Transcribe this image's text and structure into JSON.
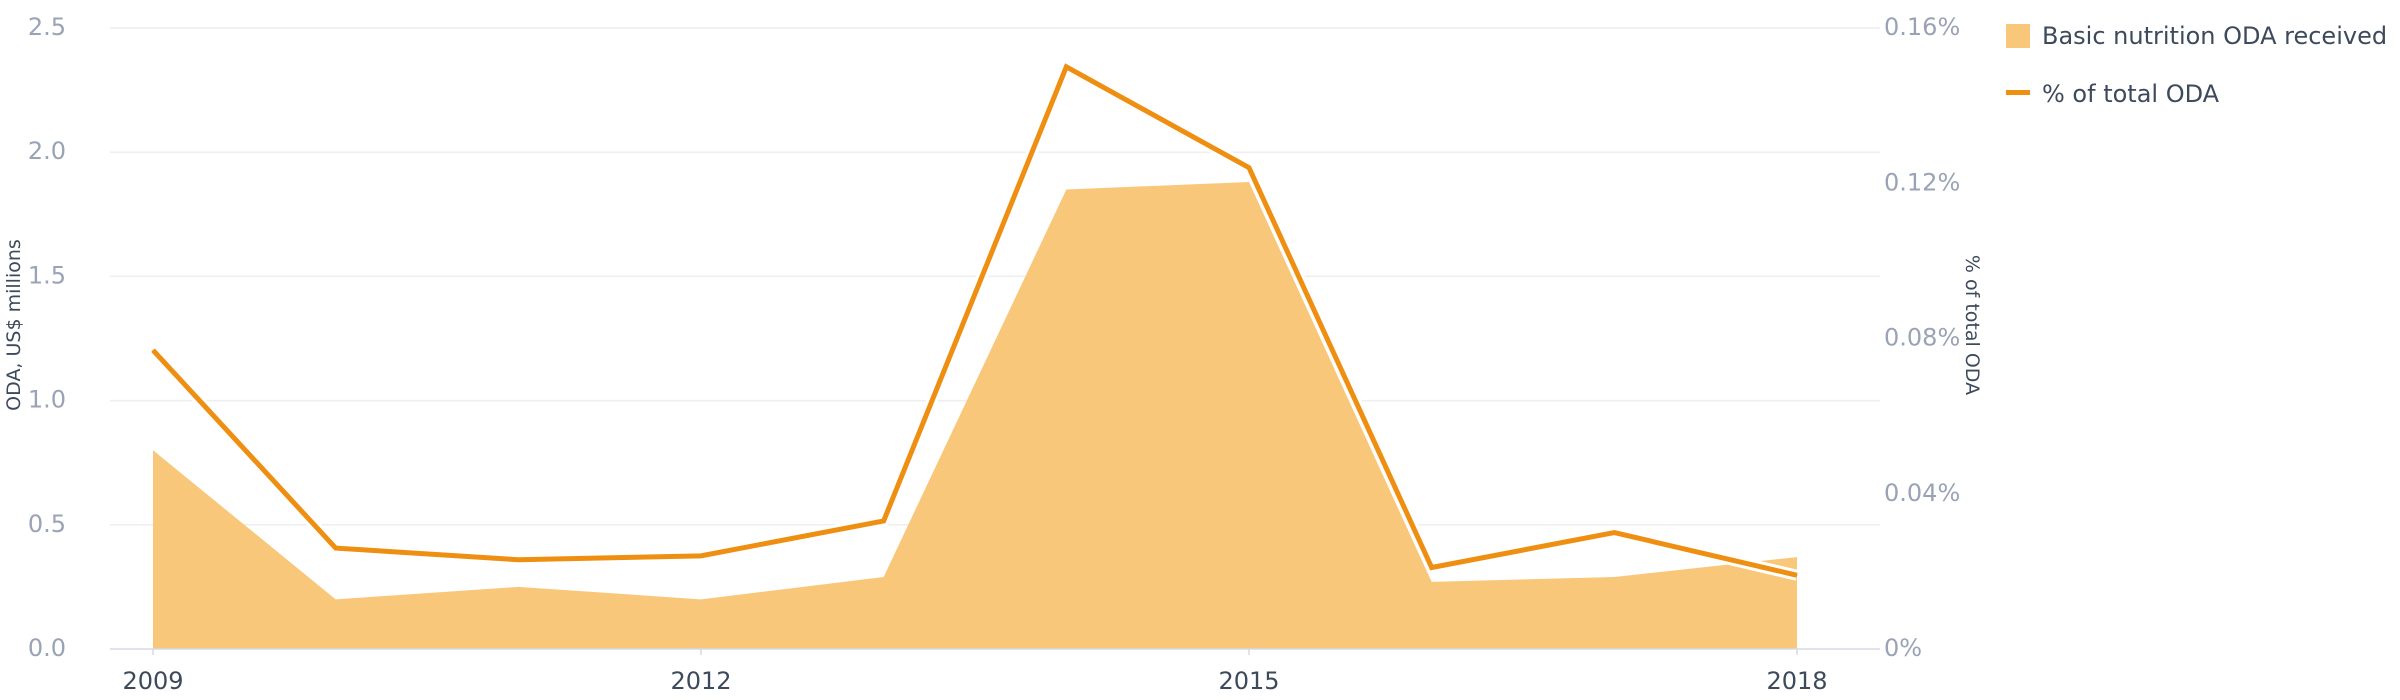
{
  "chart_data": {
    "type": "area",
    "x": [
      2009,
      2010,
      2011,
      2012,
      2013,
      2014,
      2015,
      2016,
      2017,
      2018
    ],
    "x_tick_labels": [
      "2009",
      "2012",
      "2015",
      "2018"
    ],
    "ylabel": "ODA, US$ millions",
    "ylabel_right": "% of total ODA",
    "ylim": [
      0,
      2.5
    ],
    "ylim_right": [
      0,
      0.16
    ],
    "y_ticks": [
      "0.0",
      "0.5",
      "1.0",
      "1.5",
      "2.0",
      "2.5"
    ],
    "y_ticks_right": [
      "0%",
      "0.04%",
      "0.08%",
      "0.12%",
      "0.16%"
    ],
    "grid": true,
    "legend_position": "top-right",
    "series": [
      {
        "name": "Basic nutrition ODA received",
        "type": "area",
        "axis": "left",
        "color": "#f9c77a",
        "values": [
          0.8,
          0.2,
          0.25,
          0.2,
          0.29,
          1.85,
          1.88,
          0.27,
          0.29,
          0.37
        ]
      },
      {
        "name": "% of total ODA",
        "type": "line",
        "axis": "right",
        "color": "#ee8f12",
        "values": [
          0.077,
          0.026,
          0.023,
          0.024,
          0.033,
          0.15,
          0.124,
          0.021,
          0.03,
          0.019
        ]
      }
    ]
  }
}
